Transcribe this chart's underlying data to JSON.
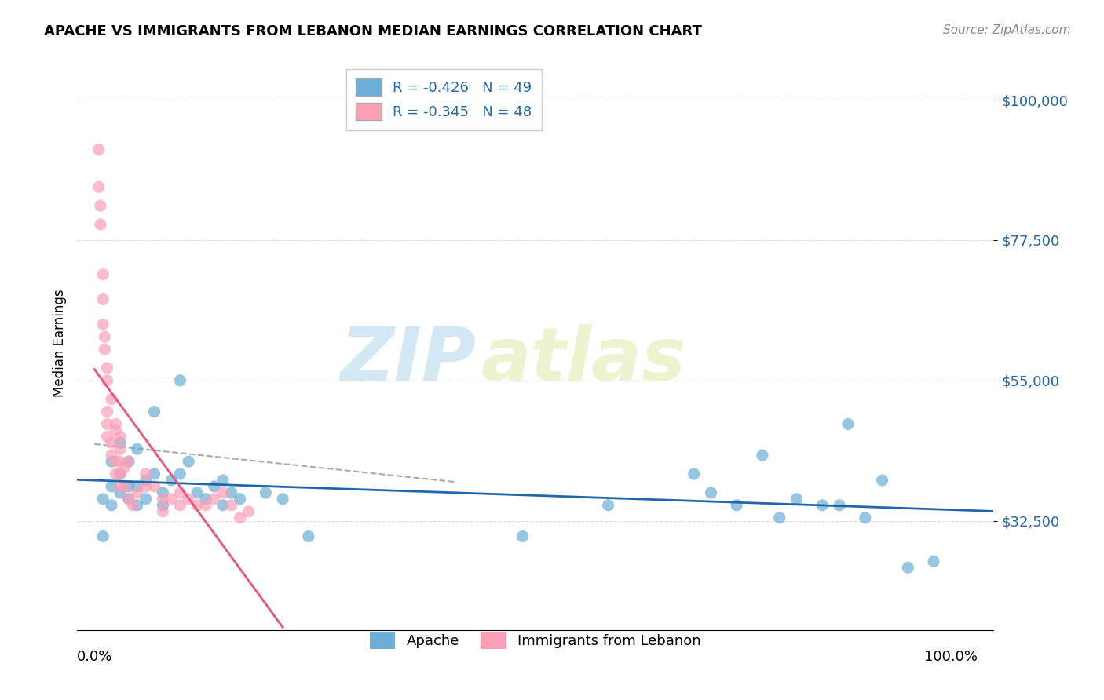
{
  "title": "APACHE VS IMMIGRANTS FROM LEBANON MEDIAN EARNINGS CORRELATION CHART",
  "source": "Source: ZipAtlas.com",
  "ylabel": "Median Earnings",
  "yticks": [
    32500,
    55000,
    77500,
    100000
  ],
  "ytick_labels": [
    "$32,500",
    "$55,000",
    "$77,500",
    "$100,000"
  ],
  "ymin": 15000,
  "ymax": 107000,
  "xmin": -0.02,
  "xmax": 1.05,
  "legend_blue_label": "R = -0.426   N = 49",
  "legend_pink_label": "R = -0.345   N = 48",
  "legend_bottom_blue": "Apache",
  "legend_bottom_pink": "Immigrants from Lebanon",
  "blue_color": "#6baed6",
  "pink_color": "#fa9fb5",
  "blue_line_color": "#2166ac",
  "pink_line_color": "#e8547a",
  "apache_x": [
    0.01,
    0.01,
    0.02,
    0.02,
    0.02,
    0.03,
    0.03,
    0.03,
    0.04,
    0.04,
    0.04,
    0.05,
    0.05,
    0.05,
    0.06,
    0.06,
    0.07,
    0.07,
    0.08,
    0.08,
    0.09,
    0.1,
    0.1,
    0.11,
    0.12,
    0.13,
    0.14,
    0.15,
    0.15,
    0.16,
    0.17,
    0.2,
    0.22,
    0.25,
    0.5,
    0.6,
    0.7,
    0.72,
    0.75,
    0.78,
    0.8,
    0.82,
    0.85,
    0.87,
    0.88,
    0.9,
    0.92,
    0.95,
    0.98
  ],
  "apache_y": [
    36000,
    30000,
    38000,
    35000,
    42000,
    37000,
    40000,
    45000,
    36000,
    42000,
    38000,
    35000,
    44000,
    38000,
    36000,
    39000,
    50000,
    40000,
    35000,
    37000,
    39000,
    55000,
    40000,
    42000,
    37000,
    36000,
    38000,
    39000,
    35000,
    37000,
    36000,
    37000,
    36000,
    30000,
    30000,
    35000,
    40000,
    37000,
    35000,
    43000,
    33000,
    36000,
    35000,
    35000,
    48000,
    33000,
    39000,
    25000,
    26000
  ],
  "lebanon_x": [
    0.005,
    0.005,
    0.007,
    0.007,
    0.01,
    0.01,
    0.01,
    0.012,
    0.012,
    0.015,
    0.015,
    0.015,
    0.015,
    0.015,
    0.02,
    0.02,
    0.02,
    0.025,
    0.025,
    0.025,
    0.025,
    0.03,
    0.03,
    0.03,
    0.03,
    0.03,
    0.035,
    0.035,
    0.04,
    0.04,
    0.045,
    0.05,
    0.06,
    0.06,
    0.07,
    0.08,
    0.08,
    0.09,
    0.1,
    0.1,
    0.11,
    0.12,
    0.13,
    0.14,
    0.15,
    0.16,
    0.17,
    0.18
  ],
  "lebanon_y": [
    92000,
    86000,
    83000,
    80000,
    72000,
    64000,
    68000,
    60000,
    62000,
    55000,
    57000,
    48000,
    50000,
    46000,
    52000,
    45000,
    43000,
    48000,
    47000,
    42000,
    40000,
    44000,
    42000,
    46000,
    40000,
    38000,
    41000,
    38000,
    42000,
    36000,
    35000,
    37000,
    38000,
    40000,
    38000,
    36000,
    34000,
    36000,
    35000,
    37000,
    36000,
    35000,
    35000,
    36000,
    37000,
    35000,
    33000,
    34000
  ],
  "watermark_zip": "ZIP",
  "watermark_atlas": "atlas",
  "background_color": "#ffffff",
  "grid_color": "#cccccc"
}
